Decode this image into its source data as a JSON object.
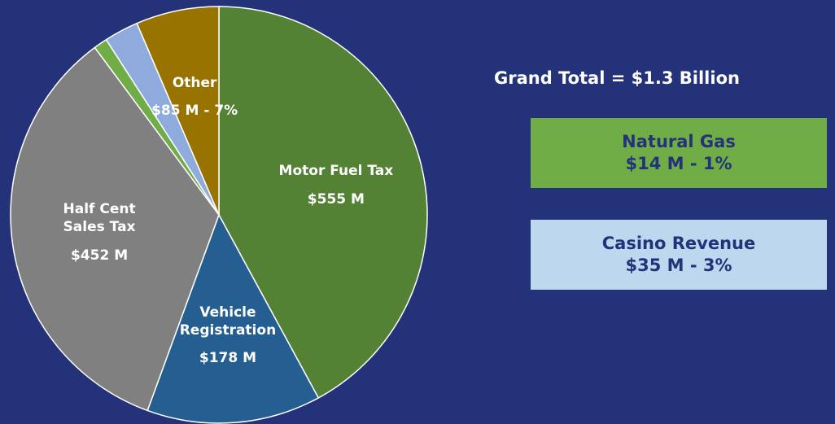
{
  "chart_data": {
    "type": "pie",
    "subtitle": "Grand Total = $1.3 Billion",
    "categories": [
      "Motor Fuel Tax",
      "Vehicle Registration",
      "Half Cent Sales Tax",
      "Natural Gas",
      "Casino Revenue",
      "Other"
    ],
    "values": [
      555,
      178,
      452,
      14,
      35,
      85
    ],
    "value_labels": [
      "$555 M",
      "$178 M",
      "$452 M",
      "$14 M - 1%",
      "$35 M - 3%",
      "$85 M - 7%"
    ],
    "colors": [
      "#548235",
      "#255e91",
      "#808080",
      "#70ad47",
      "#8faadc",
      "#997300"
    ],
    "start_angle": 0,
    "direction": "clockwise"
  }
}
